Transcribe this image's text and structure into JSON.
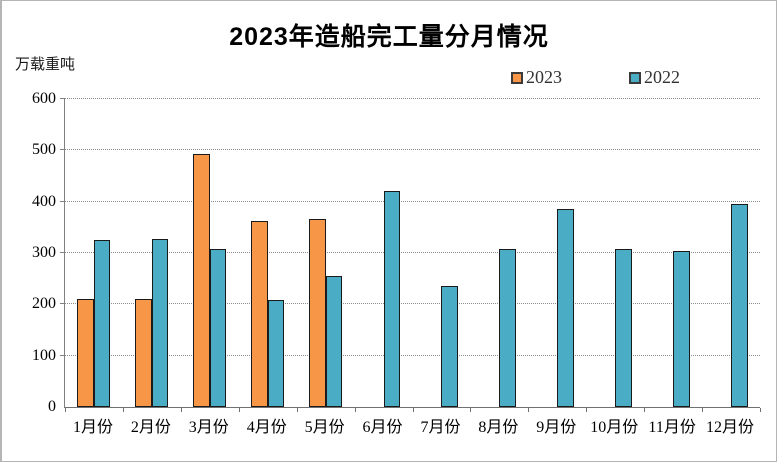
{
  "chart_data": {
    "type": "bar",
    "title": "2023年造船完工量分月情况",
    "ylabel": "万载重吨",
    "xlabel": "",
    "ylim": [
      0,
      600
    ],
    "ytick_interval": 100,
    "grid": "horizontal-dotted",
    "legend_position": "top-right",
    "categories": [
      "1月份",
      "2月份",
      "3月份",
      "4月份",
      "5月份",
      "6月份",
      "7月份",
      "8月份",
      "9月份",
      "10月份",
      "11月份",
      "12月份"
    ],
    "series": [
      {
        "name": "2023",
        "color": "#F79646",
        "values": [
          210,
          211,
          493,
          363,
          367,
          null,
          null,
          null,
          null,
          null,
          null,
          null
        ]
      },
      {
        "name": "2022",
        "color": "#4BACC6",
        "values": [
          325,
          327,
          308,
          208,
          255,
          420,
          235,
          308,
          385,
          307,
          303,
          395
        ]
      }
    ],
    "bar_border_color": "#1a1a1a"
  }
}
